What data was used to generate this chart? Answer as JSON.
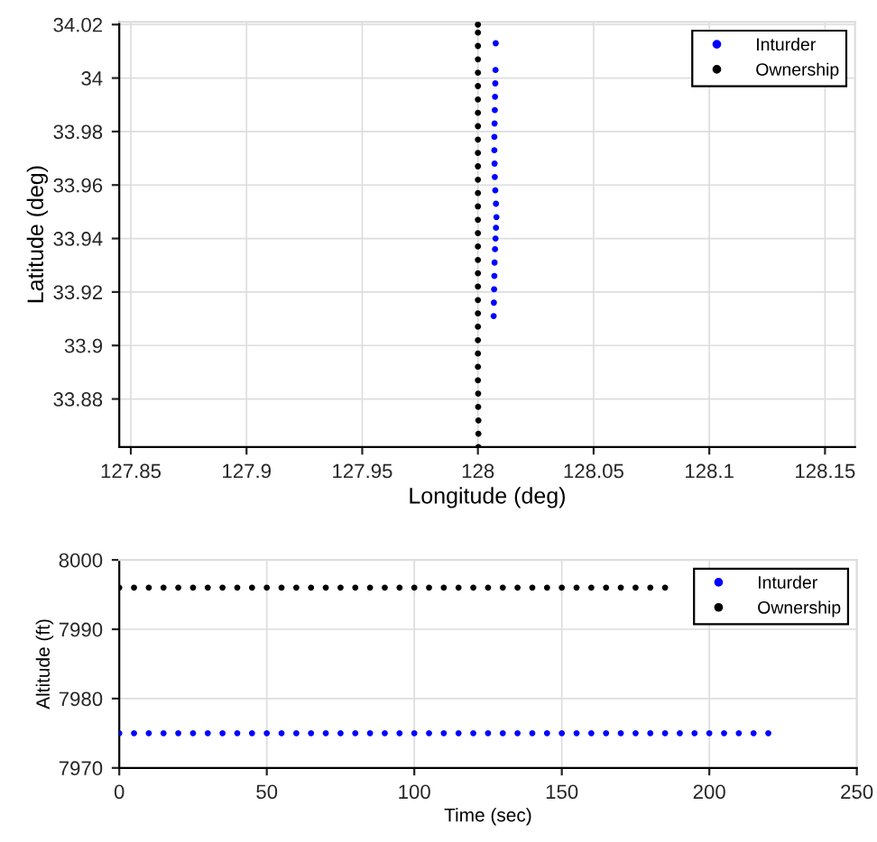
{
  "chart_data": [
    {
      "type": "scatter",
      "xlabel": "Longitude (deg)",
      "ylabel": "Latitude (deg)",
      "xlim": [
        127.845,
        128.163
      ],
      "xticks": [
        127.85,
        127.9,
        127.95,
        128,
        128.05,
        128.1,
        128.15
      ],
      "ylim": [
        33.862,
        34.021
      ],
      "yticks": [
        33.88,
        33.9,
        33.92,
        33.94,
        33.96,
        33.98,
        34,
        34.02
      ],
      "grid": true,
      "legend": "top right",
      "marker": "circle",
      "series": [
        {
          "name": "Inturder",
          "color": "#0000ff",
          "x": [
            128.0068,
            128.0069,
            128.007,
            128.0071,
            128.0072,
            128.0074,
            128.0076,
            128.0078,
            128.008,
            128.0078,
            128.0075,
            128.0073,
            128.0072,
            128.0071,
            128.0071,
            128.0072,
            128.0073,
            128.0074,
            128.0075,
            128.0076,
            128.0077
          ],
          "values": [
            33.911,
            33.916,
            33.921,
            33.926,
            33.931,
            33.936,
            33.94,
            33.944,
            33.948,
            33.953,
            33.958,
            33.963,
            33.968,
            33.973,
            33.978,
            33.983,
            33.988,
            33.993,
            33.998,
            34.003,
            34.013
          ]
        },
        {
          "name": "Ownership",
          "color": "#000000",
          "x": [
            128.0002,
            128.0002,
            128.0002,
            128.0001,
            128.0001,
            128.0,
            128.0,
            128.0,
            128.0,
            128.0,
            128.0,
            128.0,
            128.0,
            128.0,
            128.0,
            128.0,
            128.0,
            128.0,
            128.0,
            128.0,
            128.0,
            128.0,
            128.0,
            128.0,
            128.0,
            128.0,
            128.0,
            128.0,
            128.0,
            128.0,
            128.0,
            128.0,
            128.0
          ],
          "values": [
            33.862,
            33.867,
            33.872,
            33.877,
            33.882,
            33.887,
            33.892,
            33.897,
            33.902,
            33.907,
            33.912,
            33.917,
            33.922,
            33.927,
            33.932,
            33.937,
            33.942,
            33.947,
            33.952,
            33.957,
            33.962,
            33.967,
            33.972,
            33.977,
            33.982,
            33.987,
            33.992,
            33.997,
            34.002,
            34.007,
            34.012,
            34.017,
            34.02
          ]
        }
      ]
    },
    {
      "type": "scatter",
      "xlabel": "Time (sec)",
      "ylabel": "Altitude (ft)",
      "xlim": [
        0,
        250
      ],
      "xticks": [
        0,
        50,
        100,
        150,
        200,
        250
      ],
      "ylim": [
        7970,
        8000
      ],
      "yticks": [
        7970,
        7980,
        7990,
        8000
      ],
      "grid": true,
      "legend": "top right",
      "marker": "circle",
      "series": [
        {
          "name": "Inturder",
          "color": "#0000ff",
          "x": [
            0,
            5,
            10,
            15,
            20,
            25,
            30,
            35,
            40,
            45,
            50,
            55,
            60,
            65,
            70,
            75,
            80,
            85,
            90,
            95,
            100,
            105,
            110,
            115,
            120,
            125,
            130,
            135,
            140,
            145,
            150,
            155,
            160,
            165,
            170,
            175,
            180,
            185,
            190,
            195,
            200,
            205,
            210,
            215,
            220
          ],
          "values": [
            7975,
            7975,
            7975,
            7975,
            7975,
            7975,
            7975,
            7975,
            7975,
            7975,
            7975,
            7975,
            7975,
            7975,
            7975,
            7975,
            7975,
            7975,
            7975,
            7975,
            7975,
            7975,
            7975,
            7975,
            7975,
            7975,
            7975,
            7975,
            7975,
            7975,
            7975,
            7975,
            7975,
            7975,
            7975,
            7975,
            7975,
            7975,
            7975,
            7975,
            7975,
            7975,
            7975,
            7975,
            7975
          ]
        },
        {
          "name": "Ownership",
          "color": "#000000",
          "x": [
            0,
            5,
            10,
            15,
            20,
            25,
            30,
            35,
            40,
            45,
            50,
            55,
            60,
            65,
            70,
            75,
            80,
            85,
            90,
            95,
            100,
            105,
            110,
            115,
            120,
            125,
            130,
            135,
            140,
            145,
            150,
            155,
            160,
            165,
            170,
            175,
            180,
            185
          ],
          "values": [
            7996,
            7996,
            7996,
            7996,
            7996,
            7996,
            7996,
            7996,
            7996,
            7996,
            7996,
            7996,
            7996,
            7996,
            7996,
            7996,
            7996,
            7996,
            7996,
            7996,
            7996,
            7996,
            7996,
            7996,
            7996,
            7996,
            7996,
            7996,
            7996,
            7996,
            7996,
            7996,
            7996,
            7996,
            7996,
            7996,
            7996,
            7996
          ]
        }
      ]
    }
  ]
}
